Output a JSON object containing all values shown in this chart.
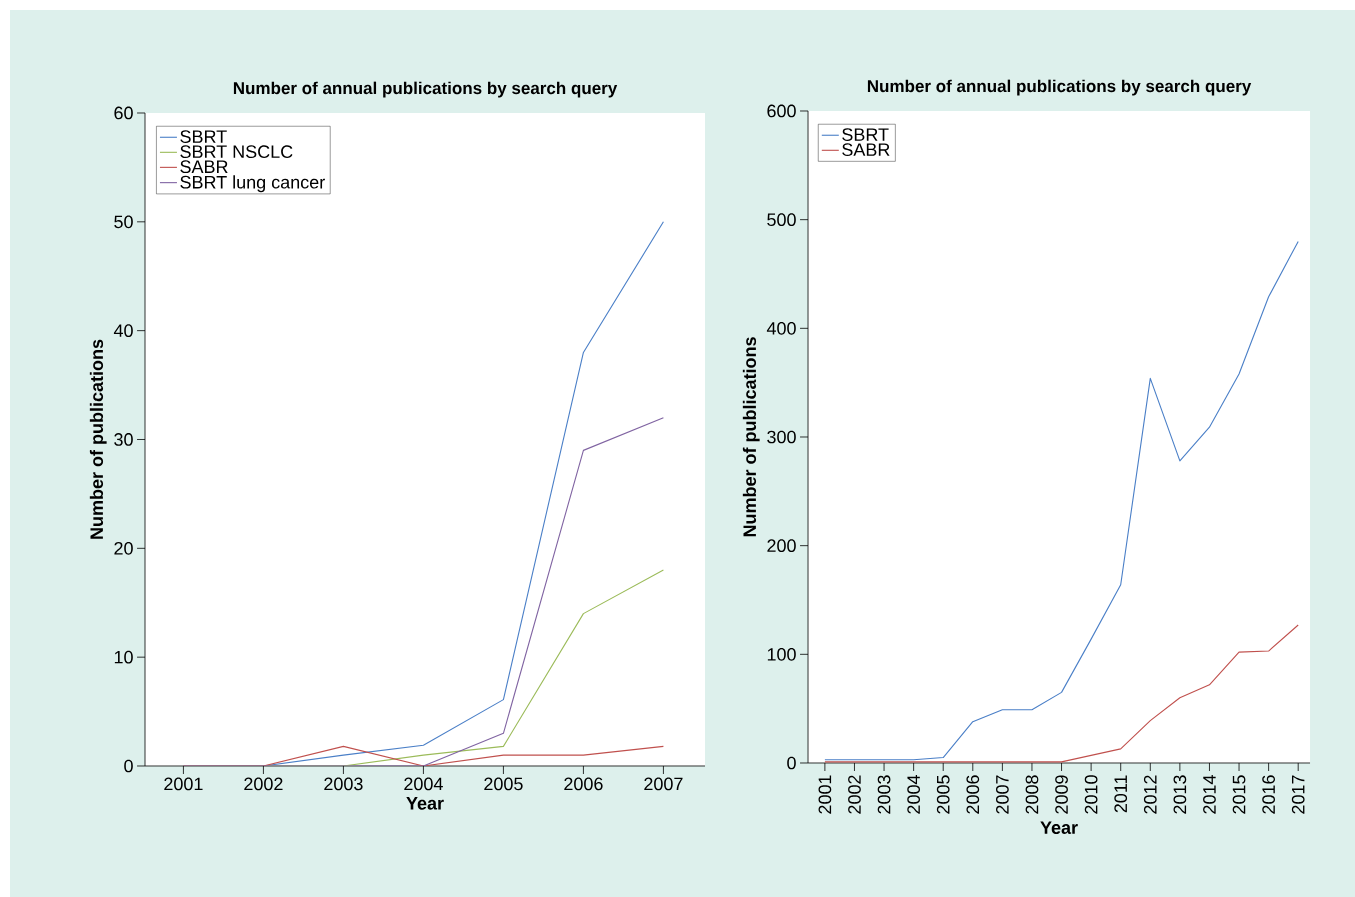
{
  "chart_data": [
    {
      "type": "line",
      "title": "Number of annual publications by search query",
      "xlabel": "Year",
      "ylabel": "Number of publications",
      "x": [
        2001,
        2002,
        2003,
        2004,
        2005,
        2006,
        2007
      ],
      "series": [
        {
          "name": "SBRT",
          "color": "#4a7fc7",
          "values": [
            0,
            0,
            1,
            1.9,
            6.1,
            38,
            50
          ]
        },
        {
          "name": "SBRT NSCLC",
          "color": "#9bbb59",
          "values": [
            0,
            0,
            0,
            1,
            1.8,
            14,
            18
          ]
        },
        {
          "name": "SABR",
          "color": "#c0504d",
          "values": [
            0,
            0,
            1.8,
            0,
            1,
            1,
            1.8
          ]
        },
        {
          "name": "SBRT lung cancer",
          "color": "#8064a2",
          "values": [
            0,
            0,
            0,
            0,
            3,
            29,
            32
          ]
        }
      ],
      "xlim": [
        2000.52,
        2007.52
      ],
      "ylim": [
        0,
        60
      ],
      "xticks": [
        2001,
        2002,
        2003,
        2004,
        2005,
        2006,
        2007
      ],
      "yticks": [
        0,
        10,
        20,
        30,
        40,
        50,
        60
      ],
      "legend": "top left",
      "grid": false
    },
    {
      "type": "line",
      "title": "Number of annual publications by search query",
      "xlabel": "Year",
      "ylabel": "Number of publications",
      "x": [
        2001,
        2002,
        2003,
        2004,
        2005,
        2006,
        2007,
        2008,
        2009,
        2010,
        2011,
        2012,
        2013,
        2014,
        2015,
        2016,
        2017
      ],
      "series": [
        {
          "name": "SBRT",
          "color": "#4a7fc7",
          "values": [
            3,
            3,
            3,
            3,
            5,
            38,
            49,
            49,
            65,
            114,
            164,
            354,
            278,
            309,
            358,
            429,
            480
          ]
        },
        {
          "name": "SABR",
          "color": "#c0504d",
          "values": [
            1,
            1,
            1,
            1,
            1,
            1,
            1,
            1,
            1,
            7,
            13,
            39,
            60,
            72,
            102,
            103,
            127
          ]
        }
      ],
      "xlim": [
        2000.43,
        2017.4
      ],
      "ylim": [
        0,
        600
      ],
      "xticks": [
        2001,
        2002,
        2003,
        2004,
        2005,
        2006,
        2007,
        2008,
        2009,
        2010,
        2011,
        2012,
        2013,
        2014,
        2015,
        2016,
        2017
      ],
      "yticks": [
        0,
        100,
        200,
        300,
        400,
        500,
        600
      ],
      "legend": "top left",
      "grid": false
    }
  ]
}
